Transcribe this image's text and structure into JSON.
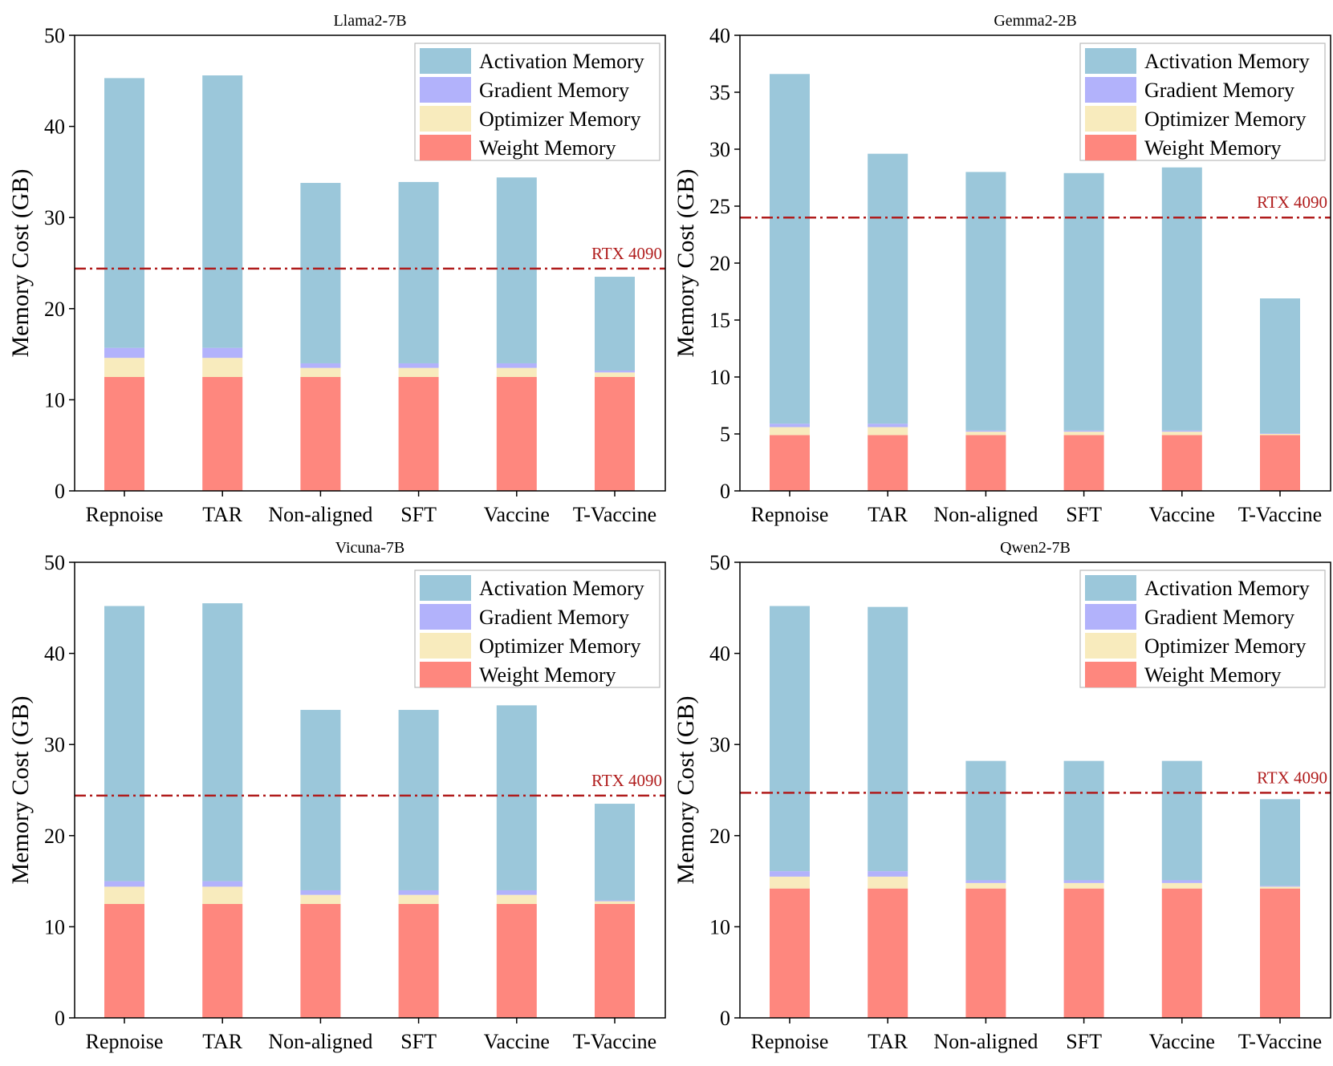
{
  "colors": {
    "activation": "#9bc7da",
    "gradient": "#b2b2fb",
    "optimizer": "#f8ebbd",
    "weight": "#fe877e",
    "reference": "#b01c1c"
  },
  "chart_data": [
    {
      "type": "bar",
      "stacked": true,
      "title": "Llama2-7B",
      "ylabel": "Memory Cost (GB)",
      "ylim": [
        0,
        50
      ],
      "yticks": [
        0,
        10,
        20,
        30,
        40,
        50
      ],
      "categories": [
        "Repnoise",
        "TAR",
        "Non-aligned",
        "SFT",
        "Vaccine",
        "T-Vaccine"
      ],
      "series": [
        {
          "name": "Weight Memory",
          "key": "weight",
          "values": [
            12.5,
            12.5,
            12.5,
            12.5,
            12.5,
            12.5
          ]
        },
        {
          "name": "Optimizer Memory",
          "key": "optimizer",
          "values": [
            2.1,
            2.1,
            1.0,
            1.0,
            1.0,
            0.5
          ]
        },
        {
          "name": "Gradient Memory",
          "key": "gradient",
          "values": [
            1.1,
            1.1,
            0.5,
            0.5,
            0.5,
            0.2
          ]
        },
        {
          "name": "Activation Memory",
          "key": "activation",
          "values": [
            29.6,
            29.9,
            19.8,
            19.9,
            20.4,
            10.3
          ]
        }
      ],
      "legend_order": [
        "Activation Memory",
        "Gradient Memory",
        "Optimizer Memory",
        "Weight Memory"
      ],
      "legend": "top-right",
      "reference_line": {
        "label": "RTX 4090",
        "value": 24.4
      }
    },
    {
      "type": "bar",
      "stacked": true,
      "title": "Gemma2-2B",
      "ylabel": "Memory Cost (GB)",
      "ylim": [
        0,
        40
      ],
      "yticks": [
        0,
        5,
        10,
        15,
        20,
        25,
        30,
        35,
        40
      ],
      "categories": [
        "Repnoise",
        "TAR",
        "Non-aligned",
        "SFT",
        "Vaccine",
        "T-Vaccine"
      ],
      "series": [
        {
          "name": "Weight Memory",
          "key": "weight",
          "values": [
            4.9,
            4.9,
            4.9,
            4.9,
            4.9,
            4.9
          ]
        },
        {
          "name": "Optimizer Memory",
          "key": "optimizer",
          "values": [
            0.7,
            0.7,
            0.3,
            0.3,
            0.3,
            0.1
          ]
        },
        {
          "name": "Gradient Memory",
          "key": "gradient",
          "values": [
            0.3,
            0.3,
            0.1,
            0.1,
            0.1,
            0.05
          ]
        },
        {
          "name": "Activation Memory",
          "key": "activation",
          "values": [
            30.7,
            23.7,
            22.7,
            22.6,
            23.1,
            11.85
          ]
        }
      ],
      "legend_order": [
        "Activation Memory",
        "Gradient Memory",
        "Optimizer Memory",
        "Weight Memory"
      ],
      "legend": "top-right",
      "reference_line": {
        "label": "RTX 4090",
        "value": 24.0
      }
    },
    {
      "type": "bar",
      "stacked": true,
      "title": "Vicuna-7B",
      "ylabel": "Memory Cost (GB)",
      "ylim": [
        0,
        50
      ],
      "yticks": [
        0,
        10,
        20,
        30,
        40,
        50
      ],
      "categories": [
        "Repnoise",
        "TAR",
        "Non-aligned",
        "SFT",
        "Vaccine",
        "T-Vaccine"
      ],
      "series": [
        {
          "name": "Weight Memory",
          "key": "weight",
          "values": [
            12.5,
            12.5,
            12.5,
            12.5,
            12.5,
            12.5
          ]
        },
        {
          "name": "Optimizer Memory",
          "key": "optimizer",
          "values": [
            1.9,
            1.9,
            1.0,
            1.0,
            1.0,
            0.3
          ]
        },
        {
          "name": "Gradient Memory",
          "key": "gradient",
          "values": [
            0.6,
            0.6,
            0.5,
            0.5,
            0.5,
            0.1
          ]
        },
        {
          "name": "Activation Memory",
          "key": "activation",
          "values": [
            30.2,
            30.5,
            19.8,
            19.8,
            20.3,
            10.6
          ]
        }
      ],
      "legend_order": [
        "Activation Memory",
        "Gradient Memory",
        "Optimizer Memory",
        "Weight Memory"
      ],
      "legend": "top-right",
      "reference_line": {
        "label": "RTX 4090",
        "value": 24.4
      }
    },
    {
      "type": "bar",
      "stacked": true,
      "title": "Qwen2-7B",
      "ylabel": "Memory Cost (GB)",
      "ylim": [
        0,
        50
      ],
      "yticks": [
        0,
        10,
        20,
        30,
        40,
        50
      ],
      "categories": [
        "Repnoise",
        "TAR",
        "Non-aligned",
        "SFT",
        "Vaccine",
        "T-Vaccine"
      ],
      "series": [
        {
          "name": "Weight Memory",
          "key": "weight",
          "values": [
            14.2,
            14.2,
            14.2,
            14.2,
            14.2,
            14.2
          ]
        },
        {
          "name": "Optimizer Memory",
          "key": "optimizer",
          "values": [
            1.3,
            1.3,
            0.6,
            0.6,
            0.6,
            0.2
          ]
        },
        {
          "name": "Gradient Memory",
          "key": "gradient",
          "values": [
            0.6,
            0.6,
            0.3,
            0.3,
            0.3,
            0.1
          ]
        },
        {
          "name": "Activation Memory",
          "key": "activation",
          "values": [
            29.1,
            29.0,
            13.1,
            13.1,
            13.1,
            9.5
          ]
        }
      ],
      "legend_order": [
        "Activation Memory",
        "Gradient Memory",
        "Optimizer Memory",
        "Weight Memory"
      ],
      "legend": "top-right",
      "reference_line": {
        "label": "RTX 4090",
        "value": 24.7
      }
    }
  ]
}
